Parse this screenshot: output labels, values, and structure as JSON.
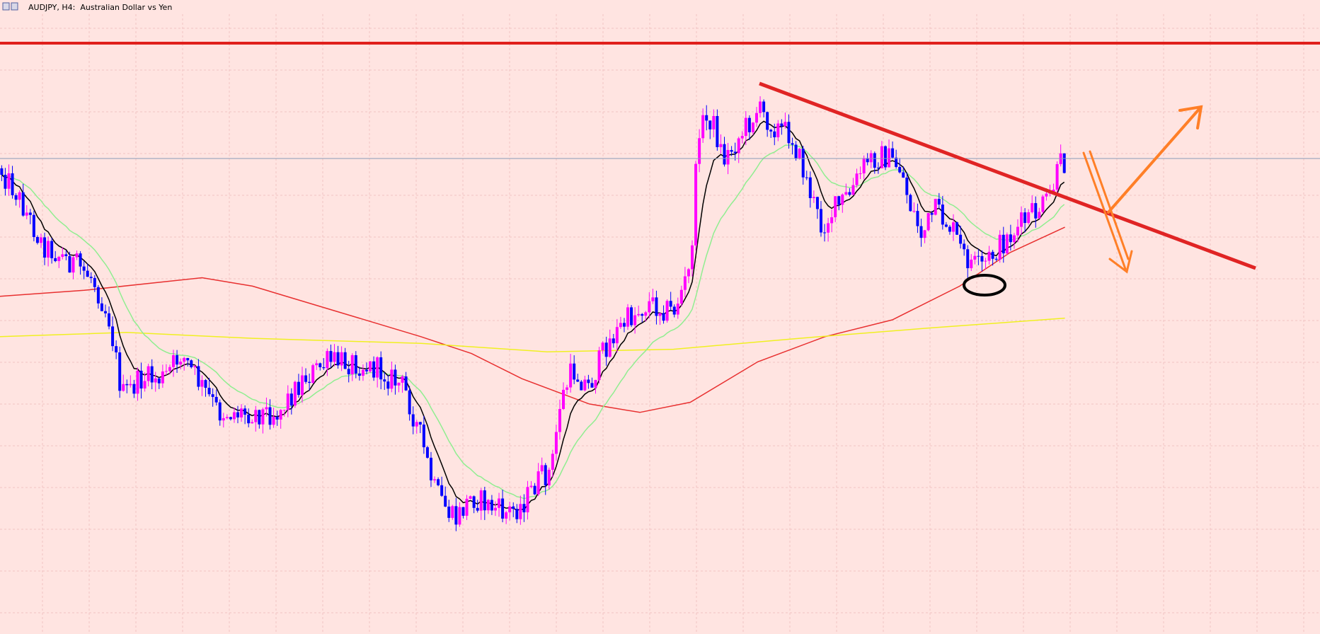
{
  "header": {
    "title": "AUDJPY, H4:  Australian Dollar vs Yen"
  }
}
